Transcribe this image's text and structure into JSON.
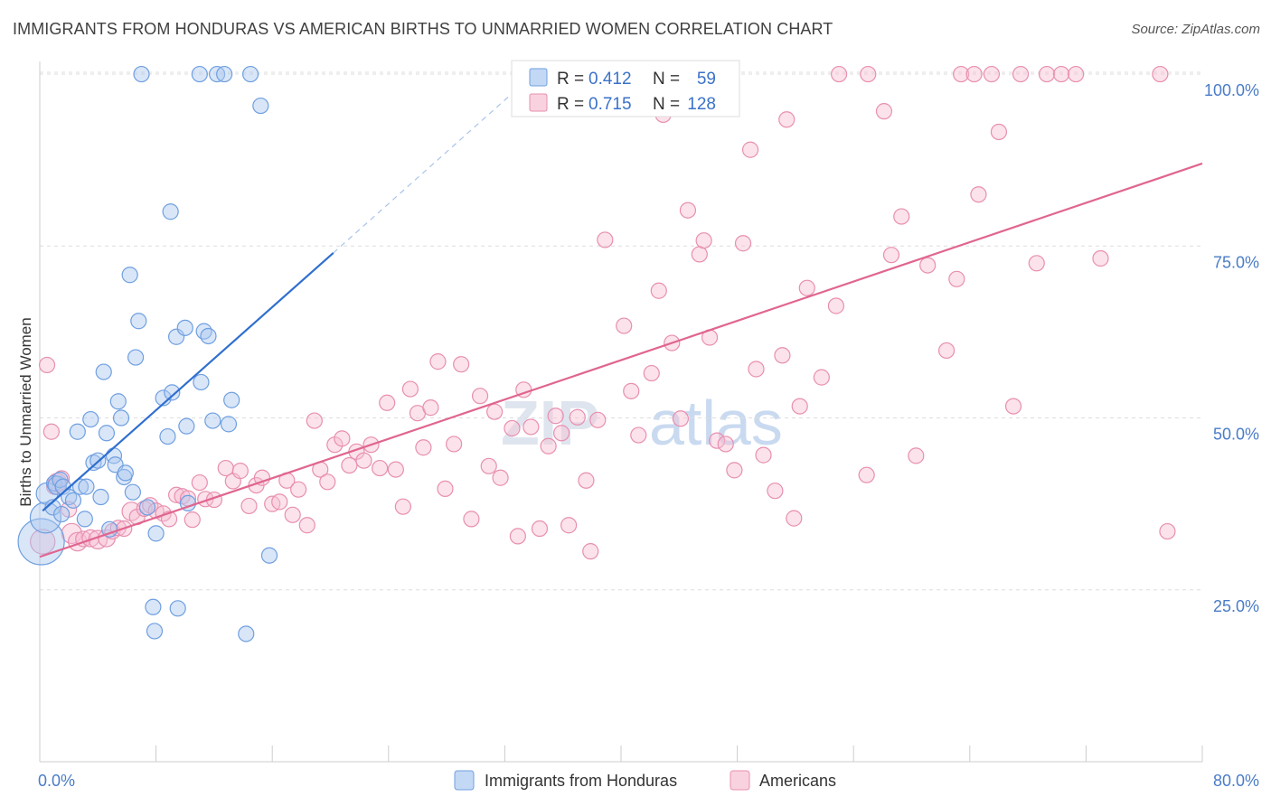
{
  "title": "IMMIGRANTS FROM HONDURAS VS AMERICAN BIRTHS TO UNMARRIED WOMEN CORRELATION CHART",
  "source": "Source: ZipAtlas.com",
  "watermark": {
    "zip": "ZIP",
    "atlas": "atlas"
  },
  "colors": {
    "blue_fill": "#aac8f0",
    "blue_stroke": "#6f9fe0",
    "blue_line": "#2f6fcf",
    "pink_fill": "#f6bfd2",
    "pink_stroke": "#e88fb0",
    "pink_line": "#e0658f",
    "grid": "#dddddd",
    "tick_text": "#4a7cc7"
  },
  "legend": {
    "rows": [
      {
        "r_label": "R =",
        "r_value": "0.412",
        "n_label": "N =",
        "n_value": "59"
      },
      {
        "r_label": "R =",
        "r_value": "0.715",
        "n_label": "N =",
        "n_value": "128"
      }
    ]
  },
  "chart_data": {
    "type": "scatter",
    "xlabel": "",
    "ylabel": "Births to Unmarried Women",
    "xlim": [
      0,
      80
    ],
    "ylim": [
      0,
      105
    ],
    "x_tick_labels": [
      "0.0%",
      "80.0%"
    ],
    "y_tick_labels": [
      "25.0%",
      "50.0%",
      "75.0%",
      "100.0%"
    ],
    "y_ticks": [
      25,
      50,
      75,
      100
    ],
    "grid": true,
    "legend_position": "bottom",
    "series": [
      {
        "name": "Immigrants from Honduras",
        "color": "#aac8f0",
        "trend": {
          "x0": 0.2,
          "y0": 36.5,
          "x1": 20.2,
          "y1": 74,
          "dash_to_x": 34,
          "dash_to_y": 100
        },
        "points": [
          [
            0.1,
            32,
            3
          ],
          [
            0.4,
            35.5,
            2
          ],
          [
            0.5,
            39,
            1.4
          ],
          [
            0.9,
            37,
            1
          ],
          [
            1.0,
            40.5,
            1
          ],
          [
            1.2,
            40.2,
            1.2
          ],
          [
            1.4,
            41,
            1
          ],
          [
            1.5,
            36,
            1
          ],
          [
            1.6,
            40,
            1
          ],
          [
            2.0,
            38.5,
            1
          ],
          [
            2.3,
            38,
            1
          ],
          [
            2.6,
            48,
            1
          ],
          [
            2.8,
            40,
            1
          ],
          [
            3.1,
            35.3,
            1
          ],
          [
            3.2,
            40,
            1
          ],
          [
            3.5,
            49.8,
            1
          ],
          [
            3.7,
            43.5,
            1
          ],
          [
            4.0,
            43.8,
            1
          ],
          [
            4.2,
            38.5,
            1
          ],
          [
            4.4,
            56.7,
            1
          ],
          [
            4.6,
            47.8,
            1
          ],
          [
            4.8,
            33.8,
            1
          ],
          [
            5.1,
            44.5,
            1
          ],
          [
            5.2,
            43.2,
            1
          ],
          [
            5.4,
            52.4,
            1
          ],
          [
            5.6,
            50,
            1
          ],
          [
            5.8,
            41.4,
            1
          ],
          [
            5.9,
            42,
            1
          ],
          [
            6.2,
            70.8,
            1
          ],
          [
            6.4,
            39.2,
            1
          ],
          [
            6.6,
            58.8,
            1
          ],
          [
            6.8,
            64.1,
            1
          ],
          [
            7.0,
            100,
            1
          ],
          [
            7.4,
            37,
            1
          ],
          [
            7.8,
            22.5,
            1
          ],
          [
            7.9,
            19,
            1
          ],
          [
            8.0,
            33.2,
            1
          ],
          [
            8.5,
            52.9,
            1
          ],
          [
            8.8,
            47.3,
            1
          ],
          [
            9.0,
            80,
            1
          ],
          [
            9.1,
            53.7,
            1
          ],
          [
            9.4,
            61.8,
            1
          ],
          [
            9.5,
            22.3,
            1
          ],
          [
            10.0,
            63.1,
            1
          ],
          [
            10.1,
            48.8,
            1
          ],
          [
            10.2,
            37.6,
            1
          ],
          [
            11.0,
            100,
            1
          ],
          [
            11.1,
            55.2,
            1
          ],
          [
            11.3,
            62.6,
            1
          ],
          [
            11.6,
            61.9,
            1
          ],
          [
            11.9,
            49.6,
            1
          ],
          [
            12.2,
            100,
            1
          ],
          [
            12.7,
            100,
            1
          ],
          [
            13.0,
            49.1,
            1
          ],
          [
            13.2,
            52.6,
            1
          ],
          [
            14.2,
            18.6,
            1
          ],
          [
            14.5,
            100,
            1
          ],
          [
            15.2,
            95.4,
            1
          ],
          [
            15.8,
            30,
            1
          ]
        ]
      },
      {
        "name": "Americans",
        "color": "#f6bfd2",
        "trend": {
          "x0": 0,
          "y0": 29.8,
          "x1": 80,
          "y1": 87
        },
        "points": [
          [
            0.2,
            32,
            1.6
          ],
          [
            0.5,
            57.7,
            1
          ],
          [
            0.8,
            48,
            1
          ],
          [
            1.0,
            40,
            1
          ],
          [
            1.2,
            40.6,
            1.2
          ],
          [
            1.5,
            41.2,
            1
          ],
          [
            2.0,
            36.7,
            1
          ],
          [
            2.2,
            33.2,
            1.3
          ],
          [
            2.6,
            32,
            1.2
          ],
          [
            3.0,
            32.4,
            1
          ],
          [
            3.5,
            32.5,
            1.1
          ],
          [
            4.0,
            32.3,
            1.2
          ],
          [
            4.6,
            32.5,
            1.1
          ],
          [
            5.0,
            33.5,
            1
          ],
          [
            5.4,
            34,
            1
          ],
          [
            5.8,
            33.9,
            1
          ],
          [
            6.3,
            36.4,
            1.2
          ],
          [
            6.7,
            35.6,
            1
          ],
          [
            7.2,
            36.8,
            1
          ],
          [
            7.6,
            37.3,
            1
          ],
          [
            8.0,
            36.5,
            1
          ],
          [
            8.5,
            36.1,
            1
          ],
          [
            8.9,
            35.3,
            1
          ],
          [
            9.4,
            38.8,
            1
          ],
          [
            9.8,
            38.6,
            1
          ],
          [
            10.2,
            38.3,
            1
          ],
          [
            10.5,
            35.2,
            1
          ],
          [
            11.0,
            40.6,
            1
          ],
          [
            11.4,
            38.2,
            1
          ],
          [
            12.0,
            38.1,
            1
          ],
          [
            12.8,
            42.7,
            1
          ],
          [
            13.3,
            40.8,
            1
          ],
          [
            13.8,
            42.3,
            1
          ],
          [
            14.4,
            37.2,
            1
          ],
          [
            14.9,
            40.2,
            1
          ],
          [
            15.3,
            41.3,
            1
          ],
          [
            16.0,
            37.5,
            1
          ],
          [
            16.5,
            37.8,
            1
          ],
          [
            17.0,
            40.9,
            1
          ],
          [
            17.4,
            35.9,
            1
          ],
          [
            17.8,
            39.6,
            1
          ],
          [
            18.4,
            34.4,
            1
          ],
          [
            18.9,
            49.6,
            1
          ],
          [
            19.3,
            42.5,
            1
          ],
          [
            19.8,
            40.7,
            1
          ],
          [
            20.3,
            46.1,
            1
          ],
          [
            20.8,
            47,
            1
          ],
          [
            21.3,
            43.1,
            1
          ],
          [
            21.8,
            45.1,
            1
          ],
          [
            22.3,
            43.8,
            1
          ],
          [
            22.8,
            46.1,
            1
          ],
          [
            23.4,
            42.7,
            1
          ],
          [
            23.9,
            52.2,
            1
          ],
          [
            24.5,
            42.5,
            1
          ],
          [
            25.0,
            37.1,
            1
          ],
          [
            25.5,
            54.2,
            1
          ],
          [
            26.0,
            50.7,
            1
          ],
          [
            26.4,
            45.7,
            1
          ],
          [
            26.9,
            51.5,
            1
          ],
          [
            27.4,
            58.2,
            1
          ],
          [
            27.9,
            39.7,
            1
          ],
          [
            28.5,
            46.2,
            1
          ],
          [
            29.0,
            57.8,
            1
          ],
          [
            29.7,
            35.3,
            1
          ],
          [
            30.3,
            53.2,
            1
          ],
          [
            30.9,
            43,
            1
          ],
          [
            31.3,
            50.9,
            1
          ],
          [
            31.7,
            41.3,
            1
          ],
          [
            32.5,
            48.5,
            1
          ],
          [
            32.9,
            32.8,
            1
          ],
          [
            33.3,
            54.1,
            1
          ],
          [
            33.8,
            48.7,
            1
          ],
          [
            34.4,
            33.9,
            1
          ],
          [
            35.0,
            45.9,
            1
          ],
          [
            35.5,
            50.3,
            1
          ],
          [
            35.9,
            47.8,
            1
          ],
          [
            36.4,
            34.4,
            1
          ],
          [
            37.0,
            50.1,
            1
          ],
          [
            37.6,
            40.9,
            1
          ],
          [
            37.9,
            30.6,
            1
          ],
          [
            38.4,
            49.7,
            1
          ],
          [
            38.9,
            75.9,
            1
          ],
          [
            39.6,
            100,
            1
          ],
          [
            40.2,
            63.4,
            1
          ],
          [
            40.7,
            53.9,
            1
          ],
          [
            41.2,
            47.5,
            1
          ],
          [
            42.1,
            56.5,
            1
          ],
          [
            42.6,
            68.5,
            1
          ],
          [
            42.9,
            94.1,
            1
          ],
          [
            43.5,
            60.9,
            1
          ],
          [
            44.1,
            49.9,
            1
          ],
          [
            44.6,
            80.2,
            1
          ],
          [
            45.4,
            73.8,
            1
          ],
          [
            45.7,
            75.8,
            1
          ],
          [
            46.1,
            61.7,
            1
          ],
          [
            46.6,
            46.7,
            1
          ],
          [
            47.2,
            46.2,
            1
          ],
          [
            47.8,
            42.4,
            1
          ],
          [
            48.4,
            75.4,
            1
          ],
          [
            48.9,
            89,
            1
          ],
          [
            49.3,
            57.1,
            1
          ],
          [
            49.8,
            44.6,
            1
          ],
          [
            50.6,
            39.4,
            1
          ],
          [
            51.1,
            59.1,
            1
          ],
          [
            51.4,
            93.4,
            1
          ],
          [
            51.9,
            35.4,
            1
          ],
          [
            52.3,
            51.7,
            1
          ],
          [
            52.8,
            68.9,
            1
          ],
          [
            53.8,
            55.9,
            1
          ],
          [
            54.8,
            66.3,
            1
          ],
          [
            55.0,
            100,
            1
          ],
          [
            56.9,
            41.7,
            1
          ],
          [
            57.0,
            100,
            1
          ],
          [
            58.1,
            94.6,
            1
          ],
          [
            58.6,
            73.7,
            1
          ],
          [
            59.3,
            79.3,
            1
          ],
          [
            60.3,
            44.5,
            1
          ],
          [
            61.1,
            72.2,
            1
          ],
          [
            62.4,
            59.8,
            1
          ],
          [
            63.1,
            70.2,
            1
          ],
          [
            63.4,
            100,
            1
          ],
          [
            64.3,
            100,
            1
          ],
          [
            64.6,
            82.5,
            1
          ],
          [
            65.5,
            100,
            1
          ],
          [
            66.0,
            91.6,
            1
          ],
          [
            67.0,
            51.7,
            1
          ],
          [
            67.5,
            100,
            1
          ],
          [
            68.6,
            72.5,
            1
          ],
          [
            69.3,
            100,
            1
          ],
          [
            70.3,
            100,
            1
          ],
          [
            71.3,
            100,
            1
          ],
          [
            73.0,
            73.2,
            1
          ],
          [
            77.1,
            100,
            1
          ],
          [
            77.6,
            33.5,
            1
          ]
        ]
      }
    ]
  },
  "bottom_legend": [
    {
      "label": "Immigrants from Honduras"
    },
    {
      "label": "Americans"
    }
  ]
}
